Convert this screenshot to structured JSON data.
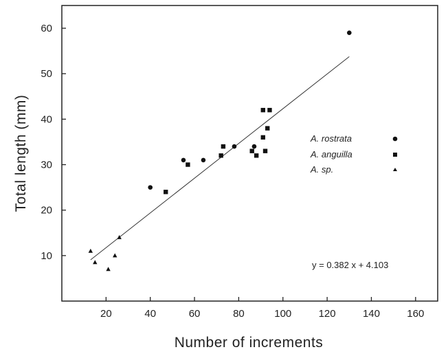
{
  "chart_data": {
    "type": "scatter",
    "xlabel": "Number of increments",
    "ylabel": "Total length (mm)",
    "xlim": [
      0,
      170
    ],
    "ylim": [
      0,
      65
    ],
    "x_ticks": [
      20,
      40,
      60,
      80,
      100,
      120,
      140,
      160
    ],
    "y_ticks": [
      10,
      20,
      30,
      40,
      50,
      60
    ],
    "series": [
      {
        "name": "A. rostrata",
        "marker": "circle",
        "points": [
          [
            40,
            25
          ],
          [
            55,
            31
          ],
          [
            64,
            31
          ],
          [
            78,
            34
          ],
          [
            87,
            34
          ],
          [
            130,
            59
          ]
        ]
      },
      {
        "name": "A. anguilla",
        "marker": "square",
        "points": [
          [
            47,
            24
          ],
          [
            57,
            30
          ],
          [
            72,
            32
          ],
          [
            73,
            34
          ],
          [
            86,
            33
          ],
          [
            88,
            32
          ],
          [
            91,
            36
          ],
          [
            91,
            42
          ],
          [
            92,
            33
          ],
          [
            93,
            38
          ],
          [
            94,
            42
          ]
        ]
      },
      {
        "name": "A. sp.",
        "marker": "triangle",
        "points": [
          [
            13,
            11
          ],
          [
            15,
            8.5
          ],
          [
            21,
            7
          ],
          [
            24,
            10
          ],
          [
            26,
            14
          ]
        ]
      }
    ],
    "regression": {
      "slope": 0.382,
      "intercept": 4.103,
      "x_range": [
        13,
        130
      ]
    },
    "annotation": "y = 0.382 x + 4.103",
    "legend_position": "right"
  }
}
